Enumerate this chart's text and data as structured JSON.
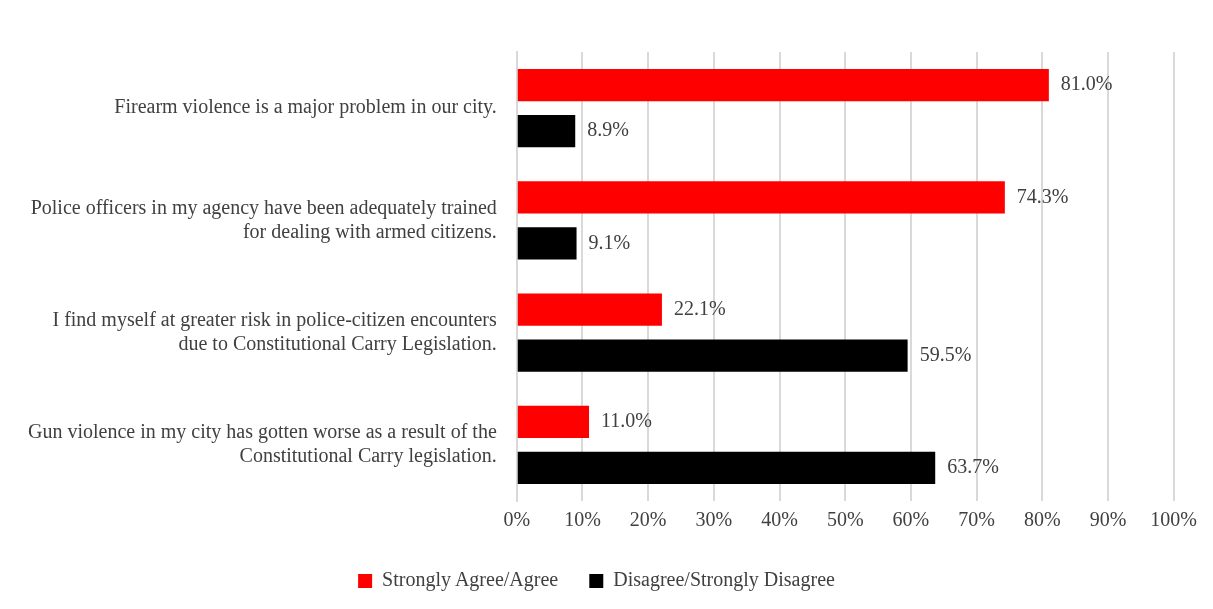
{
  "chart_data": {
    "type": "bar",
    "orientation": "horizontal",
    "categories": [
      "Firearm violence is a major problem in our city.",
      "Police officers in my agency have been adequately trained for dealing with armed citizens.",
      "I find myself at greater risk in police-citizen encounters due to Constitutional Carry Legislation.",
      "Gun violence in my city has gotten worse as a result of the Constitutional Carry legislation."
    ],
    "series": [
      {
        "name": "Strongly Agree/Agree",
        "color": "#ff0000",
        "values": [
          81.0,
          74.3,
          22.1,
          11.0
        ],
        "value_labels": [
          "81.0%",
          "74.3%",
          "22.1%",
          "11.0%"
        ]
      },
      {
        "name": "Disagree/Strongly Disagree",
        "color": "#000000",
        "values": [
          8.9,
          9.1,
          59.5,
          63.7
        ],
        "value_labels": [
          "8.9%",
          "9.1%",
          "59.5%",
          "63.7%"
        ]
      }
    ],
    "xlim": [
      0,
      100
    ],
    "xticks": [
      {
        "value": 0,
        "label": "0%"
      },
      {
        "value": 10,
        "label": "10%"
      },
      {
        "value": 20,
        "label": "20%"
      },
      {
        "value": 30,
        "label": "30%"
      },
      {
        "value": 40,
        "label": "40%"
      },
      {
        "value": 50,
        "label": "50%"
      },
      {
        "value": 60,
        "label": "60%"
      },
      {
        "value": 70,
        "label": "70%"
      },
      {
        "value": 80,
        "label": "80%"
      },
      {
        "value": 90,
        "label": "90%"
      },
      {
        "value": 100,
        "label": "100%"
      }
    ],
    "grid": "x",
    "legend": "bottom"
  }
}
